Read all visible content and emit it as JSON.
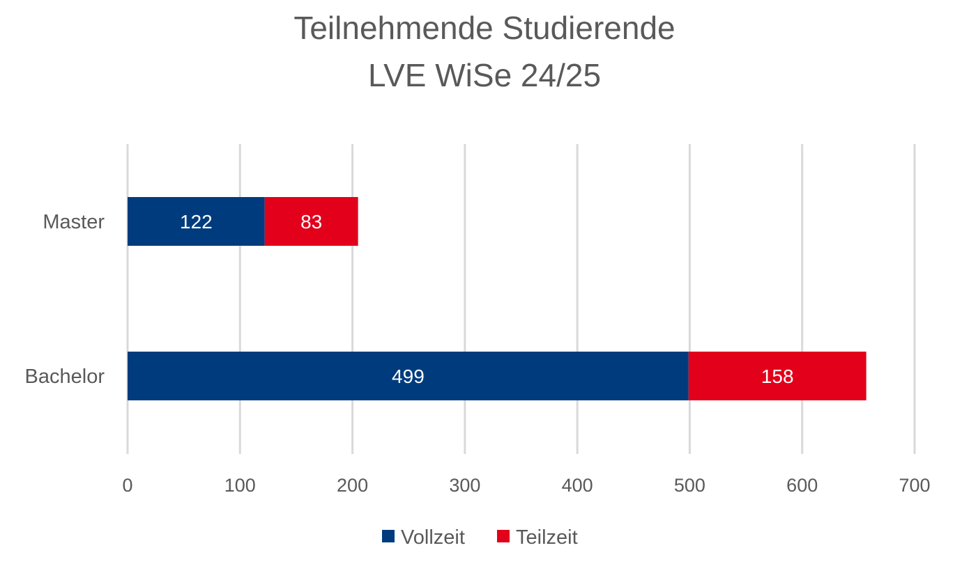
{
  "chart_data": {
    "type": "bar",
    "orientation": "horizontal",
    "stacked": true,
    "title_lines": [
      "Teilnehmende Studierende",
      "LVE WiSe 24/25"
    ],
    "categories": [
      "Master",
      "Bachelor"
    ],
    "series": [
      {
        "name": "Vollzeit",
        "color": "#003c7d",
        "values": [
          122,
          499
        ]
      },
      {
        "name": "Teilzeit",
        "color": "#e2001a",
        "values": [
          83,
          158
        ]
      }
    ],
    "x_ticks": [
      0,
      100,
      200,
      300,
      400,
      500,
      600,
      700
    ],
    "xlim": [
      0,
      700
    ],
    "grid": "vertical",
    "legend_position": "bottom",
    "data_labels": true
  }
}
